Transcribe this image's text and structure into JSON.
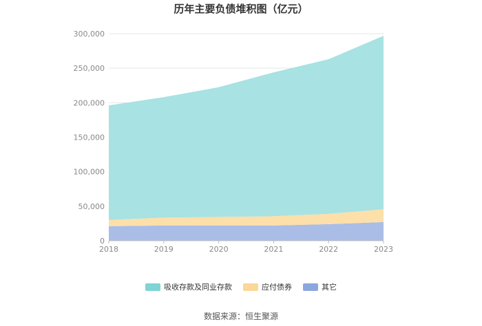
{
  "source_text": "数据来源：恒生聚源",
  "colors": {
    "deposits": "#a8e2e2",
    "bonds": "#fddfaa",
    "other": "#a9bde6",
    "deposits_swatch": "#7fd4d4",
    "bonds_swatch": "#fcd79a",
    "other_swatch": "#8aa8dd"
  },
  "chart_data": {
    "type": "area",
    "stacked": true,
    "title": "历年主要负债堆积图（亿元）",
    "categories": [
      "2018",
      "2019",
      "2020",
      "2021",
      "2022",
      "2023"
    ],
    "ylim": [
      0,
      300000
    ],
    "yticks": [
      0,
      50000,
      100000,
      150000,
      200000,
      250000,
      300000
    ],
    "ytick_labels": [
      "0",
      "50,000",
      "100,000",
      "150,000",
      "200,000",
      "250,000",
      "300,000"
    ],
    "grid": true,
    "legend_position": "bottom",
    "series": [
      {
        "name": "其它",
        "values": [
          21000,
          22000,
          22000,
          22000,
          24000,
          27000
        ]
      },
      {
        "name": "应付债券",
        "values": [
          9000,
          11500,
          12500,
          13500,
          15000,
          18500
        ]
      },
      {
        "name": "吸收存款及同业存款",
        "values": [
          166000,
          174500,
          188000,
          208500,
          224000,
          251500
        ]
      }
    ]
  }
}
